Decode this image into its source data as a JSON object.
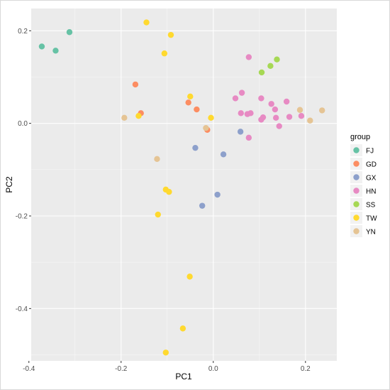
{
  "chart_data": {
    "type": "scatter",
    "xlabel": "PC1",
    "ylabel": "PC2",
    "xlim": [
      -0.395,
      0.268
    ],
    "ylim": [
      -0.513,
      0.248
    ],
    "x_ticks": [
      -0.4,
      -0.2,
      0.0,
      0.2
    ],
    "x_tick_labels": [
      "-0.4",
      "-0.2",
      "0.0",
      "0.2"
    ],
    "y_ticks": [
      -0.4,
      -0.2,
      0.0,
      0.2
    ],
    "y_tick_labels": [
      "-0.4",
      "-0.2",
      "0.0",
      "0.2"
    ],
    "background": "#ebebeb",
    "grid": true,
    "legend": {
      "title": "group",
      "position": "right"
    },
    "series": [
      {
        "name": "FJ",
        "color": "#66c2a5",
        "points": [
          [
            -0.372,
            0.166
          ],
          [
            -0.342,
            0.157
          ],
          [
            -0.312,
            0.197
          ]
        ]
      },
      {
        "name": "GD",
        "color": "#fc8d62",
        "points": [
          [
            -0.169,
            0.084
          ],
          [
            -0.157,
            0.022
          ],
          [
            -0.054,
            0.045
          ],
          [
            -0.036,
            0.03
          ],
          [
            -0.013,
            -0.014
          ]
        ]
      },
      {
        "name": "GX",
        "color": "#8da0cb",
        "points": [
          [
            -0.039,
            -0.053
          ],
          [
            0.059,
            -0.018
          ],
          [
            0.022,
            -0.067
          ],
          [
            0.009,
            -0.154
          ],
          [
            -0.024,
            -0.178
          ]
        ]
      },
      {
        "name": "HN",
        "color": "#e78ac3",
        "points": [
          [
            0.077,
            0.143
          ],
          [
            0.048,
            0.054
          ],
          [
            0.062,
            0.066
          ],
          [
            0.06,
            0.022
          ],
          [
            0.074,
            0.02
          ],
          [
            0.081,
            0.022
          ],
          [
            0.077,
            -0.031
          ],
          [
            0.104,
            0.054
          ],
          [
            0.104,
            0.008
          ],
          [
            0.108,
            0.013
          ],
          [
            0.126,
            0.042
          ],
          [
            0.134,
            0.03
          ],
          [
            0.136,
            0.012
          ],
          [
            0.143,
            -0.006
          ],
          [
            0.159,
            0.047
          ],
          [
            0.165,
            0.014
          ],
          [
            0.191,
            0.016
          ]
        ]
      },
      {
        "name": "SS",
        "color": "#a6d854",
        "points": [
          [
            0.105,
            0.11
          ],
          [
            0.124,
            0.124
          ],
          [
            0.138,
            0.138
          ]
        ]
      },
      {
        "name": "TW",
        "color": "#ffd92f",
        "points": [
          [
            -0.145,
            0.218
          ],
          [
            -0.092,
            0.191
          ],
          [
            -0.106,
            0.151
          ],
          [
            -0.05,
            0.058
          ],
          [
            -0.162,
            0.016
          ],
          [
            -0.005,
            0.012
          ],
          [
            -0.103,
            -0.143
          ],
          [
            -0.096,
            -0.148
          ],
          [
            -0.12,
            -0.197
          ],
          [
            -0.051,
            -0.331
          ],
          [
            -0.066,
            -0.443
          ],
          [
            -0.103,
            -0.495
          ]
        ]
      },
      {
        "name": "YN",
        "color": "#e5c494",
        "points": [
          [
            -0.193,
            0.012
          ],
          [
            -0.122,
            -0.077
          ],
          [
            -0.016,
            -0.01
          ],
          [
            0.188,
            0.029
          ],
          [
            0.21,
            0.006
          ],
          [
            0.236,
            0.028
          ]
        ]
      }
    ]
  }
}
